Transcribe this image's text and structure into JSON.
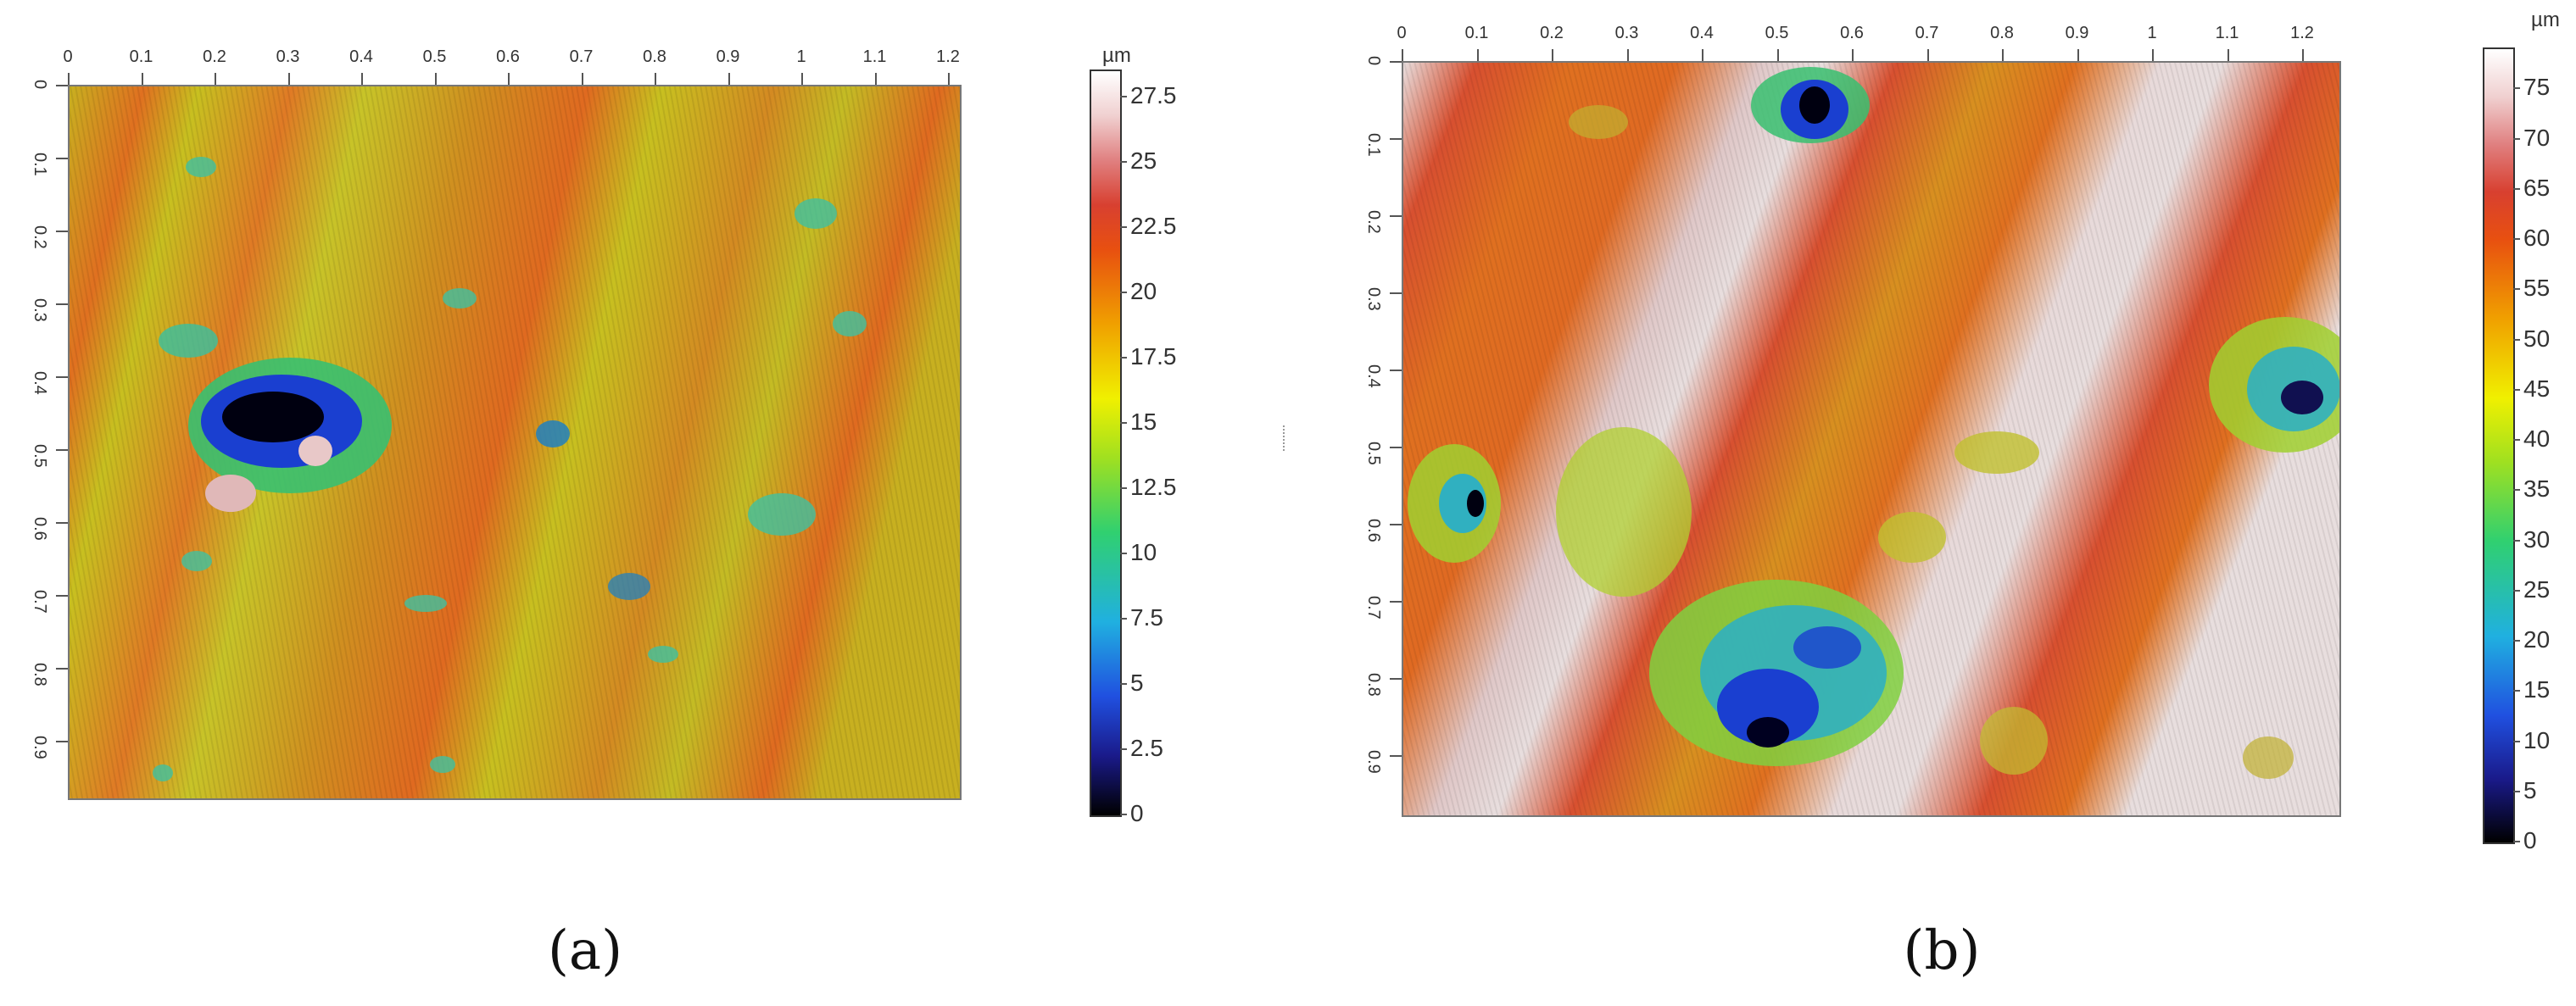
{
  "panel_a": {
    "caption": "(a)",
    "x_ticks": [
      "0",
      "0.1",
      "0.2",
      "0.3",
      "0.4",
      "0.5",
      "0.6",
      "0.7",
      "0.8",
      "0.9",
      "1",
      "1.1",
      "1.2"
    ],
    "y_ticks": [
      "0",
      "0.1",
      "0.2",
      "0.3",
      "0.4",
      "0.5",
      "0.6",
      "0.7",
      "0.8",
      "0.9"
    ],
    "colorbar_unit": "µm",
    "colorbar_ticks": [
      "27.5",
      "25",
      "22.5",
      "20",
      "17.5",
      "15",
      "12.5",
      "10",
      "7.5",
      "5",
      "2.5",
      "0"
    ],
    "colorbar_range": [
      0,
      28.5
    ]
  },
  "panel_b": {
    "caption": "(b)",
    "x_ticks": [
      "0",
      "0.1",
      "0.2",
      "0.3",
      "0.4",
      "0.5",
      "0.6",
      "0.7",
      "0.8",
      "0.9",
      "1",
      "1.1",
      "1.2"
    ],
    "y_ticks": [
      "0",
      "0.1",
      "0.2",
      "0.3",
      "0.4",
      "0.5",
      "0.6",
      "0.7",
      "0.8",
      "0.9"
    ],
    "colorbar_unit": "µm",
    "colorbar_ticks": [
      "75",
      "70",
      "65",
      "60",
      "55",
      "50",
      "45",
      "40",
      "35",
      "30",
      "25",
      "20",
      "15",
      "10",
      "5",
      "0"
    ],
    "colorbar_range": [
      0,
      79
    ]
  },
  "colors": {
    "surface_yellow": "#c8c020",
    "surface_orange": "#e06a20",
    "surface_white": "#e8dede",
    "pit_blue": "#1a3fd0",
    "pit_green": "#38c070"
  }
}
